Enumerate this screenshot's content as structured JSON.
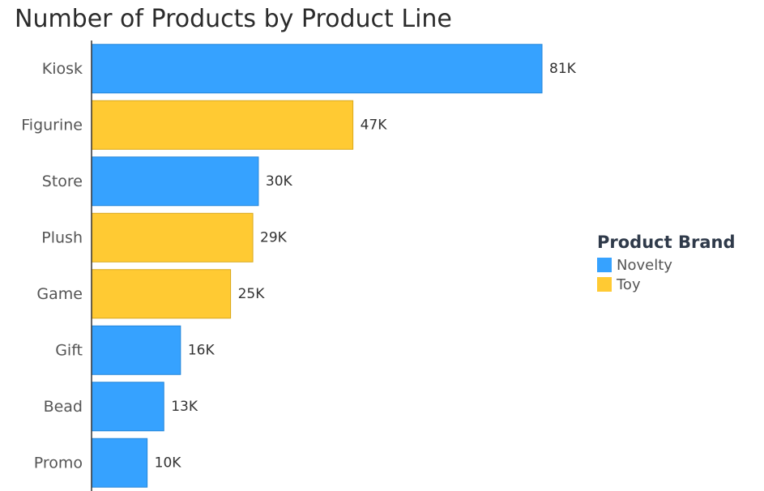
{
  "colors": {
    "novelty": "#36a2ff",
    "toy": "#ffca33",
    "novelty_border": "#2486d9",
    "toy_border": "#d9a81c",
    "axis": "#333333"
  },
  "legend": {
    "title": "Product Brand",
    "items": [
      {
        "label": "Novelty",
        "color": "#36a2ff"
      },
      {
        "label": "Toy",
        "color": "#ffca33"
      }
    ]
  },
  "chart_data": {
    "type": "bar",
    "orientation": "horizontal",
    "title": "Number of Products by Product Line",
    "xlabel": "",
    "ylabel": "",
    "xlim": [
      0,
      81000
    ],
    "grid": false,
    "legend_position": "right",
    "categories": [
      "Kiosk",
      "Figurine",
      "Store",
      "Plush",
      "Game",
      "Gift",
      "Bead",
      "Promo"
    ],
    "values": [
      81000,
      47000,
      30000,
      29000,
      25000,
      16000,
      13000,
      10000
    ],
    "data_labels": [
      "81K",
      "47K",
      "30K",
      "29K",
      "25K",
      "16K",
      "13K",
      "10K"
    ],
    "brands": [
      "Novelty",
      "Toy",
      "Novelty",
      "Toy",
      "Toy",
      "Novelty",
      "Novelty",
      "Novelty"
    ]
  }
}
